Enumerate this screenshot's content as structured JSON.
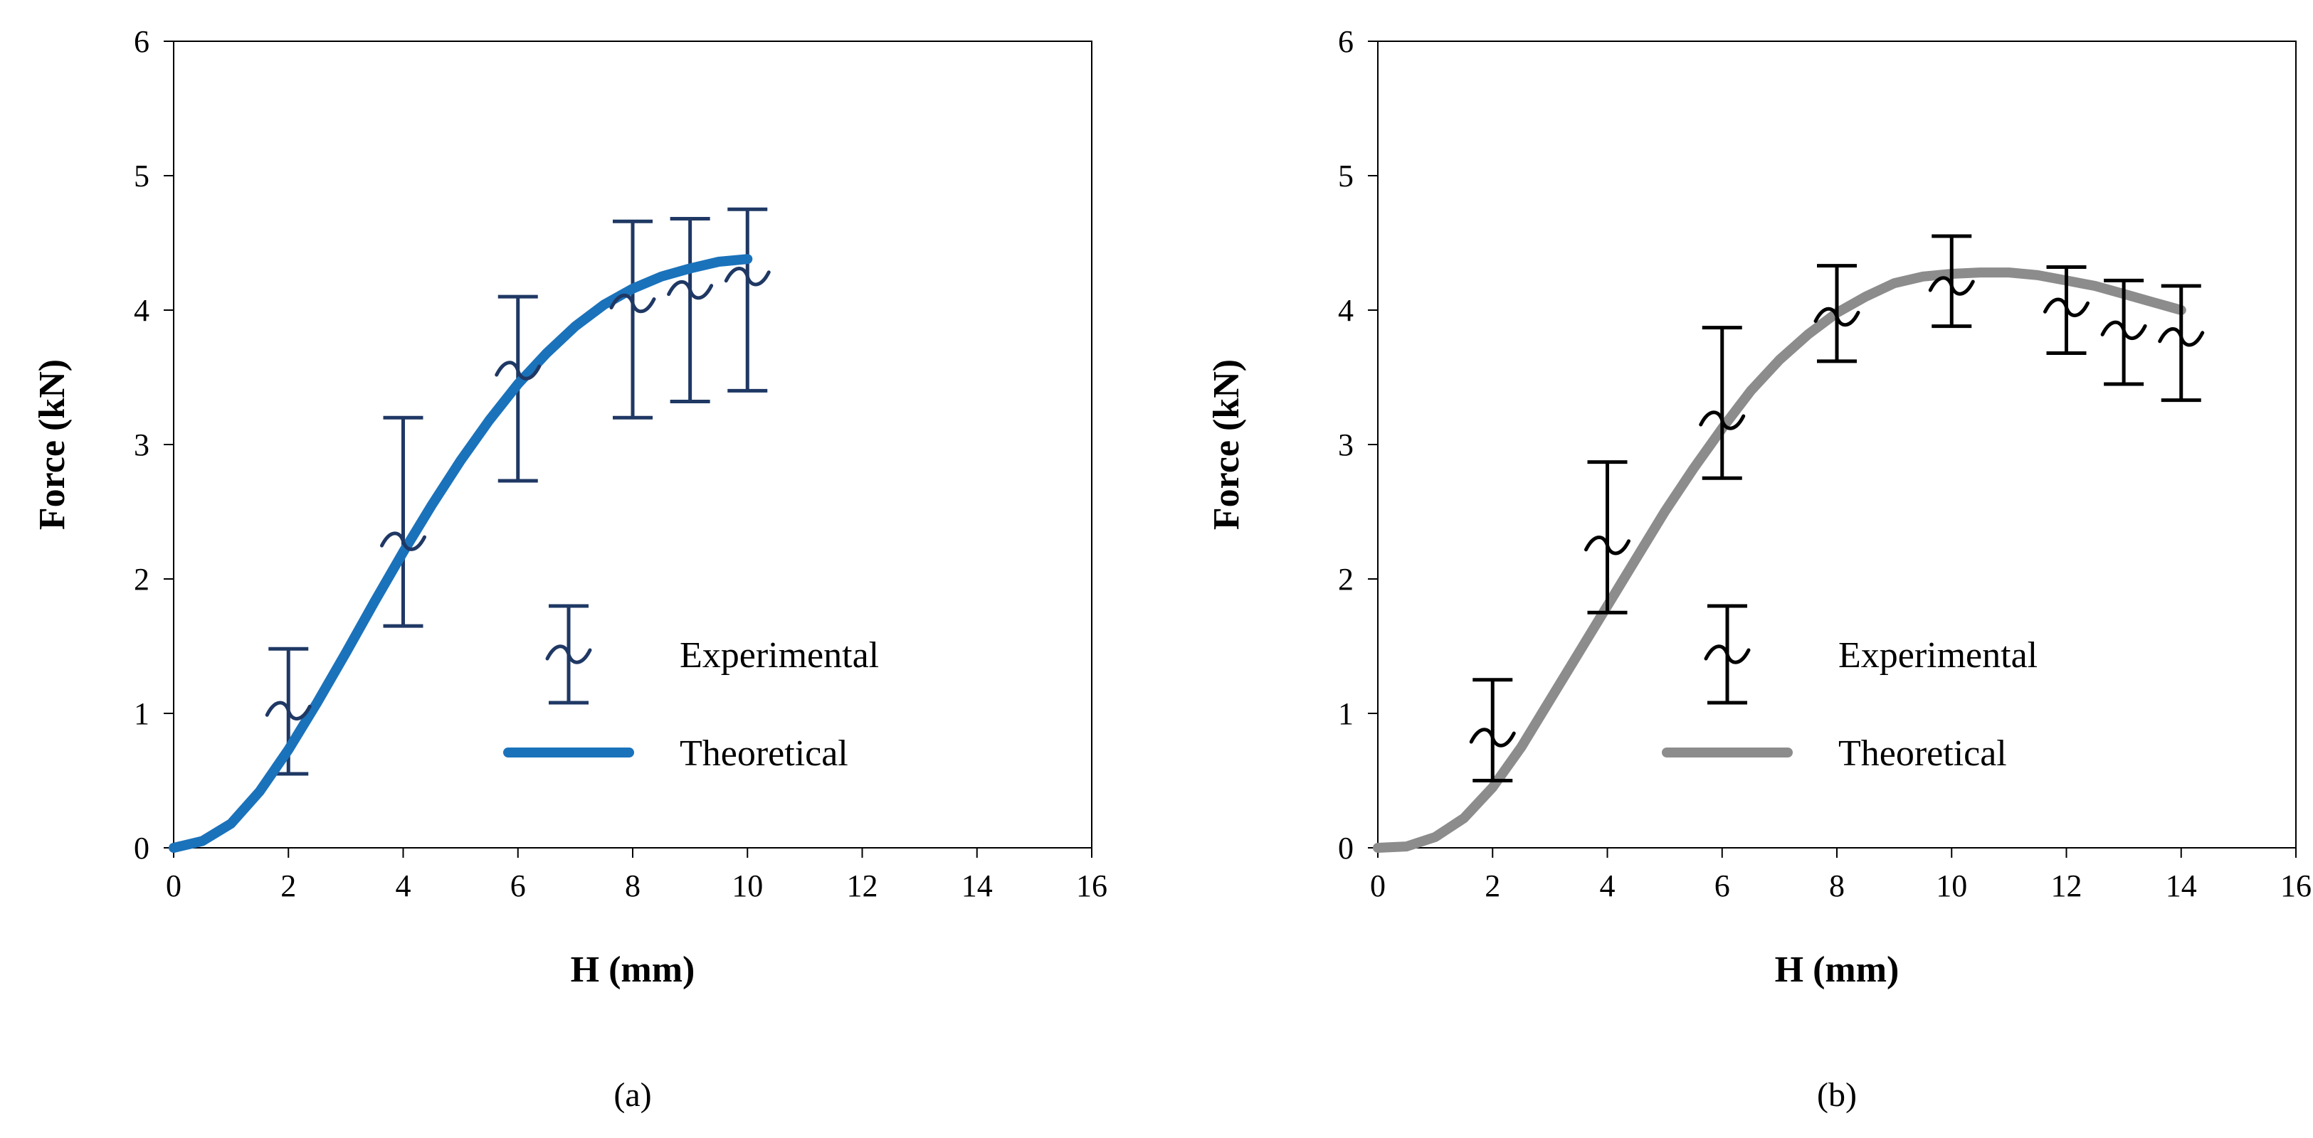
{
  "chart_data": [
    {
      "type": "line",
      "panel": "(a)",
      "xlabel": "H (mm)",
      "ylabel": "Force  (kN)",
      "xlim": [
        0,
        16
      ],
      "ylim": [
        0,
        6
      ],
      "xticks": [
        0,
        2,
        4,
        6,
        8,
        10,
        12,
        14,
        16
      ],
      "yticks": [
        0,
        1,
        2,
        3,
        4,
        5,
        6
      ],
      "grid": false,
      "legend_position": "center-right",
      "series": [
        {
          "name": "Experimental",
          "kind": "errorbar",
          "color": "#1F3864",
          "x": [
            2,
            4,
            6,
            8,
            9,
            10
          ],
          "y": [
            1.02,
            2.28,
            3.55,
            4.05,
            4.15,
            4.25
          ],
          "err_low": [
            0.55,
            1.65,
            2.73,
            3.2,
            3.32,
            3.4
          ],
          "err_high": [
            1.48,
            3.2,
            4.1,
            4.66,
            4.68,
            4.75
          ]
        },
        {
          "name": "Theoretical",
          "kind": "line",
          "color": "#1A72BB",
          "x": [
            0,
            0.5,
            1,
            1.5,
            2,
            2.5,
            3,
            3.5,
            4,
            4.5,
            5,
            5.5,
            6,
            6.5,
            7,
            7.5,
            8,
            8.5,
            9,
            9.5,
            10
          ],
          "y": [
            0,
            0.05,
            0.18,
            0.42,
            0.73,
            1.08,
            1.45,
            1.83,
            2.2,
            2.55,
            2.88,
            3.18,
            3.45,
            3.68,
            3.88,
            4.04,
            4.16,
            4.25,
            4.31,
            4.36,
            4.38
          ]
        }
      ]
    },
    {
      "type": "line",
      "panel": "(b)",
      "xlabel": "H (mm)",
      "ylabel": "Force  (kN)",
      "xlim": [
        0,
        16
      ],
      "ylim": [
        0,
        6
      ],
      "xticks": [
        0,
        2,
        4,
        6,
        8,
        10,
        12,
        14,
        16
      ],
      "yticks": [
        0,
        1,
        2,
        3,
        4,
        5,
        6
      ],
      "grid": false,
      "legend_position": "center-right",
      "series": [
        {
          "name": "Experimental",
          "kind": "errorbar",
          "color": "#000000",
          "x": [
            2,
            4,
            6,
            8,
            10,
            12,
            13,
            14
          ],
          "y": [
            0.82,
            2.25,
            3.18,
            3.95,
            4.18,
            4.02,
            3.85,
            3.8
          ],
          "err_low": [
            0.5,
            1.75,
            2.75,
            3.62,
            3.88,
            3.68,
            3.45,
            3.33
          ],
          "err_high": [
            1.25,
            2.87,
            3.87,
            4.33,
            4.55,
            4.32,
            4.22,
            4.18
          ]
        },
        {
          "name": "Theoretical",
          "kind": "line",
          "color": "#8C8C8C",
          "x": [
            0,
            0.5,
            1,
            1.5,
            2,
            2.5,
            3,
            3.5,
            4,
            4.5,
            5,
            5.5,
            6,
            6.5,
            7,
            7.5,
            8,
            8.5,
            9,
            9.5,
            10,
            10.5,
            11,
            11.5,
            12,
            12.5,
            13,
            13.5,
            14
          ],
          "y": [
            0,
            0.01,
            0.08,
            0.22,
            0.45,
            0.75,
            1.1,
            1.45,
            1.8,
            2.15,
            2.5,
            2.82,
            3.12,
            3.4,
            3.63,
            3.82,
            3.98,
            4.1,
            4.2,
            4.25,
            4.27,
            4.28,
            4.28,
            4.26,
            4.22,
            4.18,
            4.12,
            4.06,
            4.0
          ]
        }
      ]
    }
  ]
}
